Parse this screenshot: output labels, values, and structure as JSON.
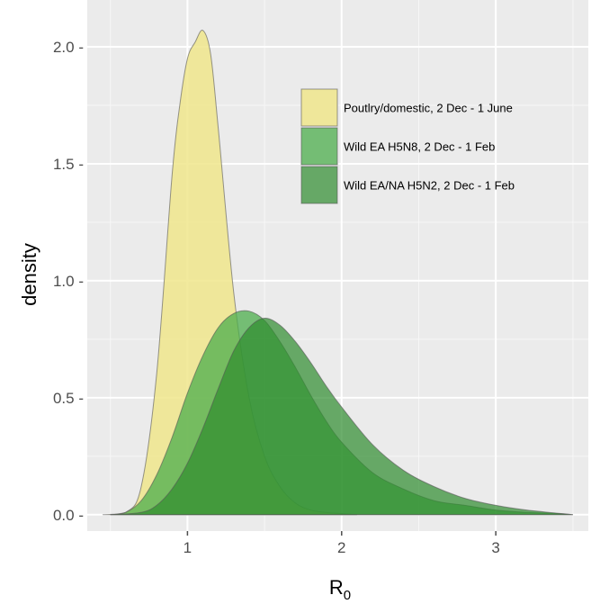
{
  "chart_data": {
    "type": "area",
    "xlabel": "R",
    "xlabel_subscript": "0",
    "ylabel": "density",
    "xlim": [
      0.35,
      3.6
    ],
    "ylim": [
      -0.07,
      2.2
    ],
    "x_ticks": [
      1,
      2,
      3
    ],
    "x_tick_labels": [
      "1",
      "2",
      "3"
    ],
    "y_ticks": [
      0.0,
      0.5,
      1.0,
      1.5,
      2.0
    ],
    "y_tick_labels": [
      "0.0 -",
      "0.5 -",
      "1.0 -",
      "1.5 -",
      "2.0 -"
    ],
    "grid": true,
    "legend_position": "top-right",
    "series": [
      {
        "name": "Poutlry/domestic, 2 Dec - 1 June",
        "fill": "#f0e68c",
        "opacity": 0.85,
        "x": [
          0.45,
          0.6,
          0.7,
          0.8,
          0.9,
          0.95,
          1.0,
          1.05,
          1.1,
          1.15,
          1.2,
          1.3,
          1.4,
          1.5,
          1.6,
          1.7,
          1.8,
          1.9,
          2.0,
          2.1
        ],
        "y": [
          0.0,
          0.01,
          0.12,
          0.6,
          1.45,
          1.75,
          1.95,
          2.02,
          2.07,
          1.97,
          1.65,
          0.95,
          0.5,
          0.25,
          0.12,
          0.05,
          0.02,
          0.01,
          0.005,
          0.0
        ]
      },
      {
        "name": "Wild EA H5N8, 2 Dec - 1 Feb",
        "fill": "#4cae4c",
        "opacity": 0.75,
        "x": [
          0.5,
          0.6,
          0.7,
          0.8,
          0.9,
          1.0,
          1.1,
          1.2,
          1.3,
          1.4,
          1.5,
          1.6,
          1.7,
          1.8,
          1.9,
          2.0,
          2.2,
          2.4,
          2.6,
          2.8,
          3.0,
          3.2,
          3.4,
          3.5
        ],
        "y": [
          0.0,
          0.01,
          0.06,
          0.17,
          0.33,
          0.52,
          0.68,
          0.8,
          0.86,
          0.87,
          0.83,
          0.74,
          0.63,
          0.51,
          0.4,
          0.31,
          0.18,
          0.11,
          0.06,
          0.04,
          0.02,
          0.01,
          0.005,
          0.0
        ]
      },
      {
        "name": "Wild EA/NA H5N2, 2 Dec - 1 Feb",
        "fill": "#2e8b2e",
        "opacity": 0.7,
        "x": [
          0.5,
          0.7,
          0.8,
          0.9,
          1.0,
          1.1,
          1.2,
          1.3,
          1.4,
          1.5,
          1.6,
          1.7,
          1.8,
          1.9,
          2.0,
          2.2,
          2.4,
          2.6,
          2.8,
          3.0,
          3.2,
          3.5
        ],
        "y": [
          0.0,
          0.01,
          0.04,
          0.11,
          0.22,
          0.37,
          0.54,
          0.7,
          0.8,
          0.84,
          0.81,
          0.74,
          0.65,
          0.55,
          0.46,
          0.3,
          0.19,
          0.12,
          0.07,
          0.04,
          0.02,
          0.0
        ]
      }
    ]
  }
}
